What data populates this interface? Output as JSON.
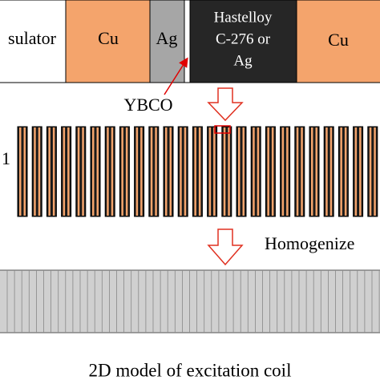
{
  "layers": [
    {
      "label": "sulator"
    },
    {
      "label": "Cu"
    },
    {
      "label": "Ag"
    },
    {
      "label_lines": [
        "Hastelloy",
        "C-276 or",
        "Ag"
      ]
    },
    {
      "label": "Cu"
    }
  ],
  "ybco_label": "YBCO",
  "coil_label": "1",
  "step_label": "Homogenize",
  "caption": "2D model of excitation coil"
}
